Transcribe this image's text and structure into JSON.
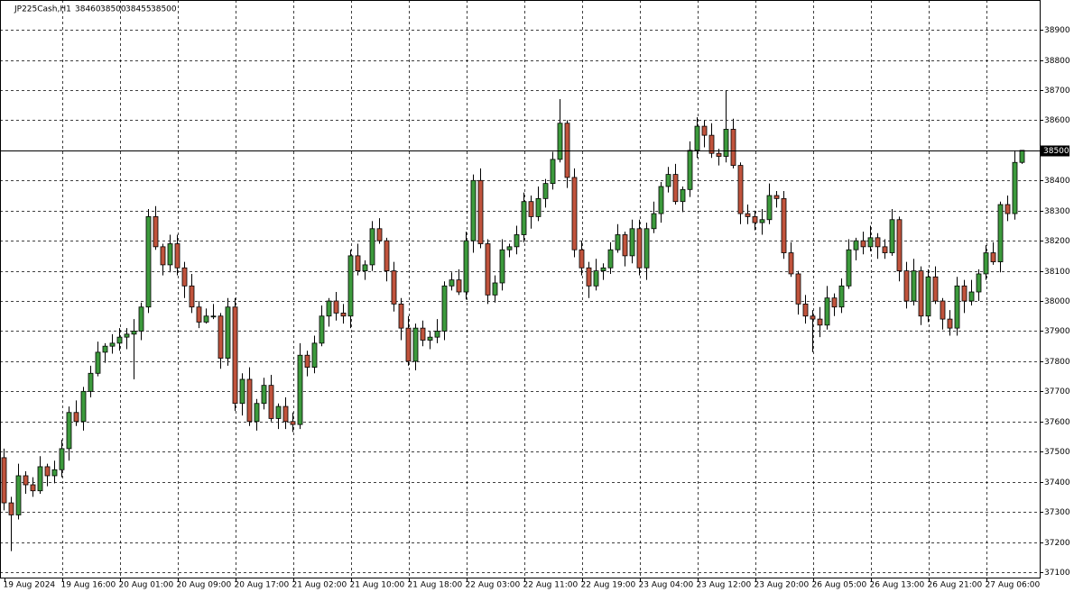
{
  "chart_data": {
    "type": "candlestick",
    "header_symbol": "JP225Cash,H1",
    "header_values": [
      38460,
      38500,
      38455,
      38500
    ],
    "up_color": "#3c9a3c",
    "down_color": "#c0533c",
    "bid": 38500,
    "ylim": [
      37079,
      38999
    ],
    "yticks": [
      37100,
      37200,
      37300,
      37400,
      37500,
      37600,
      37700,
      37800,
      37900,
      38000,
      38100,
      38200,
      38300,
      38400,
      38500,
      38600,
      38700,
      38800,
      38900
    ],
    "grid": true,
    "categories": [
      "19 Aug 2024",
      null,
      null,
      null,
      null,
      null,
      null,
      null,
      "19 Aug 16:00",
      null,
      null,
      null,
      null,
      null,
      null,
      null,
      "20 Aug 01:00",
      null,
      null,
      null,
      null,
      null,
      null,
      null,
      "20 Aug 09:00",
      null,
      null,
      null,
      null,
      null,
      null,
      null,
      "20 Aug 17:00",
      null,
      null,
      null,
      null,
      null,
      null,
      null,
      "21 Aug 02:00",
      null,
      null,
      null,
      null,
      null,
      null,
      null,
      "21 Aug 10:00",
      null,
      null,
      null,
      null,
      null,
      null,
      null,
      "21 Aug 18:00",
      null,
      null,
      null,
      null,
      null,
      null,
      null,
      "22 Aug 03:00",
      null,
      null,
      null,
      null,
      null,
      null,
      null,
      "22 Aug 11:00",
      null,
      null,
      null,
      null,
      null,
      null,
      null,
      "22 Aug 19:00",
      null,
      null,
      null,
      null,
      null,
      null,
      null,
      "23 Aug 04:00",
      null,
      null,
      null,
      null,
      null,
      null,
      null,
      "23 Aug 12:00",
      null,
      null,
      null,
      null,
      null,
      null,
      null,
      "23 Aug 20:00",
      null,
      null,
      null,
      null,
      null,
      null,
      null,
      "26 Aug 05:00",
      null,
      null,
      null,
      null,
      null,
      null,
      null,
      "26 Aug 13:00",
      null,
      null,
      null,
      null,
      null,
      null,
      null,
      "26 Aug 21:00",
      null,
      null,
      null,
      null,
      null,
      null,
      null,
      "27 Aug 06:00",
      null,
      null,
      null,
      null,
      null
    ],
    "open": [
      37480,
      37330,
      37290,
      37420,
      37390,
      37370,
      37450,
      37420,
      37440,
      37510,
      37630,
      37600,
      37700,
      37760,
      37830,
      37850,
      37860,
      37880,
      37890,
      37900,
      37980,
      38280,
      38180,
      38120,
      38190,
      38110,
      38050,
      37980,
      37930,
      37950,
      37950,
      37810,
      37980,
      37660,
      37740,
      37600,
      37660,
      37720,
      37610,
      37650,
      37600,
      37590,
      37820,
      37780,
      37860,
      37950,
      38000,
      37960,
      37950,
      38150,
      38100,
      38120,
      38240,
      38200,
      38100,
      37990,
      37910,
      37800,
      37910,
      37870,
      37880,
      37900,
      38050,
      38070,
      38030,
      38200,
      38400,
      38190,
      38020,
      38060,
      38170,
      38180,
      38220,
      38330,
      38280,
      38340,
      38390,
      38470,
      38590,
      38410,
      38170,
      38110,
      38050,
      38100,
      38110,
      38170,
      38220,
      38150,
      38240,
      38110,
      38240,
      38290,
      38380,
      38420,
      38330,
      38370,
      38500,
      38580,
      38550,
      38490,
      38480,
      38570,
      38450,
      38290,
      38280,
      38260,
      38270,
      38350,
      38340,
      38160,
      38090,
      37990,
      37950,
      37940,
      37920,
      38010,
      37980,
      38050,
      38170,
      38200,
      38180,
      38210,
      38180,
      38160,
      38270,
      38100,
      38000,
      38100,
      37950,
      38080,
      38000,
      37940,
      37910,
      38050,
      38000,
      38030,
      38090,
      38160,
      38130,
      38320,
      38290,
      38460
    ],
    "high": [
      37510,
      37350,
      37460,
      37435,
      37415,
      37485,
      37460,
      37470,
      37540,
      37650,
      37670,
      37715,
      37785,
      37865,
      37860,
      37890,
      37910,
      37910,
      37940,
      37995,
      38305,
      38315,
      38190,
      38220,
      38220,
      38130,
      38090,
      38000,
      37975,
      37990,
      37960,
      38010,
      38010,
      37760,
      37780,
      37675,
      37745,
      37755,
      37660,
      37680,
      37630,
      37860,
      37835,
      37885,
      37985,
      38010,
      38030,
      37990,
      38170,
      38190,
      38135,
      38265,
      38275,
      38210,
      38130,
      38010,
      37950,
      37925,
      37935,
      37900,
      37940,
      38065,
      38095,
      38105,
      38230,
      38420,
      38440,
      38205,
      38085,
      38205,
      38190,
      38250,
      38360,
      38350,
      38380,
      38405,
      38495,
      38670,
      38600,
      38440,
      38200,
      38130,
      38140,
      38125,
      38195,
      38255,
      38230,
      38270,
      38270,
      38260,
      38330,
      38395,
      38445,
      38455,
      38380,
      38530,
      38610,
      38600,
      38590,
      38505,
      38700,
      38605,
      38460,
      38320,
      38300,
      38305,
      38390,
      38365,
      38365,
      38195,
      38100,
      38020,
      37970,
      37980,
      38050,
      38025,
      38075,
      38205,
      38210,
      38230,
      38250,
      38225,
      38205,
      38305,
      38280,
      38130,
      38140,
      38115,
      38105,
      38115,
      38010,
      37970,
      38080,
      38070,
      38070,
      38105,
      38185,
      38195,
      38330,
      38350,
      38500,
      38500
    ],
    "low": [
      37305,
      37170,
      37275,
      37360,
      37350,
      37360,
      37385,
      37395,
      37415,
      37470,
      37585,
      37570,
      37680,
      37750,
      37795,
      37825,
      37835,
      37840,
      37740,
      37870,
      37960,
      38170,
      38085,
      38095,
      38085,
      38010,
      37960,
      37910,
      37925,
      37940,
      37775,
      37785,
      37635,
      37620,
      37585,
      37570,
      37640,
      37600,
      37575,
      37575,
      37565,
      37575,
      37750,
      37760,
      37850,
      37915,
      37935,
      37925,
      37910,
      38085,
      38070,
      38100,
      38190,
      38065,
      37965,
      37870,
      37785,
      37770,
      37850,
      37840,
      37860,
      37870,
      38035,
      38020,
      38005,
      38160,
      38175,
      37990,
      37995,
      38035,
      38145,
      38155,
      38195,
      38240,
      38265,
      38310,
      38370,
      38460,
      38375,
      38145,
      38085,
      38010,
      38035,
      38070,
      38090,
      38160,
      38115,
      38125,
      38085,
      38070,
      38225,
      38260,
      38360,
      38320,
      38295,
      38345,
      38475,
      38510,
      38475,
      38450,
      38460,
      38440,
      38255,
      38255,
      38235,
      38220,
      38255,
      38310,
      38140,
      38080,
      37955,
      37925,
      37830,
      37880,
      37905,
      37950,
      37960,
      38040,
      38135,
      38155,
      38165,
      38140,
      38140,
      38150,
      38065,
      37975,
      37985,
      37920,
      37930,
      37990,
      37905,
      37885,
      37885,
      37960,
      37985,
      38000,
      38070,
      38120,
      38095,
      38265,
      38270,
      38455
    ],
    "close": [
      37330,
      37290,
      37420,
      37390,
      37370,
      37450,
      37420,
      37440,
      37510,
      37630,
      37600,
      37700,
      37760,
      37830,
      37850,
      37860,
      37880,
      37890,
      37900,
      37980,
      38280,
      38180,
      38120,
      38190,
      38110,
      38050,
      37980,
      37930,
      37950,
      37950,
      37810,
      37980,
      37660,
      37740,
      37600,
      37660,
      37720,
      37610,
      37650,
      37600,
      37590,
      37820,
      37780,
      37860,
      37950,
      38000,
      37960,
      37950,
      38150,
      38100,
      38120,
      38240,
      38200,
      38100,
      37990,
      37910,
      37800,
      37910,
      37870,
      37880,
      37900,
      38050,
      38070,
      38030,
      38200,
      38400,
      38190,
      38020,
      38060,
      38170,
      38180,
      38220,
      38330,
      38280,
      38340,
      38390,
      38470,
      38590,
      38410,
      38170,
      38110,
      38050,
      38100,
      38110,
      38170,
      38220,
      38150,
      38240,
      38110,
      38240,
      38290,
      38380,
      38420,
      38330,
      38370,
      38500,
      38580,
      38550,
      38490,
      38480,
      38570,
      38450,
      38290,
      38280,
      38260,
      38270,
      38350,
      38340,
      38160,
      38090,
      37990,
      37950,
      37940,
      37920,
      38010,
      37980,
      38050,
      38170,
      38200,
      38180,
      38210,
      38180,
      38160,
      38270,
      38100,
      38000,
      38100,
      37950,
      38080,
      38000,
      37940,
      37910,
      38050,
      38000,
      38030,
      38090,
      38160,
      38130,
      38320,
      38290,
      38460,
      38500
    ]
  }
}
